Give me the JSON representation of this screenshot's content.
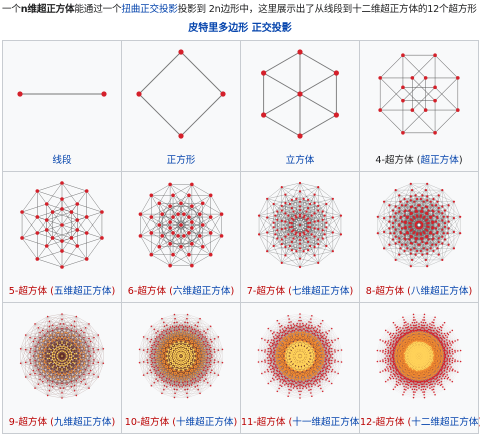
{
  "intro": {
    "t1": "一个",
    "t2": "n维超正方体",
    "t3": "能通过一个",
    "t4": "扭曲正交投影",
    "t5": "投影到 2n边形中，这里展示出了从线段到十二维超正方体的12个超方形"
  },
  "caption": {
    "c1": "皮特里多边形",
    "c2": " 正交投影"
  },
  "colors": {
    "link": "#0645ad",
    "redlink": "#ba0000",
    "vertex": "#d4202a",
    "edge": "#555555"
  },
  "cells": [
    {
      "name": "线段",
      "n": 1,
      "parts": [
        {
          "text": "线段",
          "cls": "n"
        }
      ]
    },
    {
      "name": "正方形",
      "n": 2,
      "parts": [
        {
          "text": "正方形",
          "cls": "n"
        }
      ]
    },
    {
      "name": "立方体",
      "n": 3,
      "parts": [
        {
          "text": "立方体",
          "cls": "n"
        }
      ]
    },
    {
      "name": "4-超方体",
      "n": 4,
      "parts": [
        {
          "text": "4-超方体 (",
          "cls": "p"
        },
        {
          "text": "超正方体",
          "cls": "n"
        },
        {
          "text": ")",
          "cls": "p"
        }
      ]
    },
    {
      "name": "5-超方体",
      "n": 5,
      "parts": [
        {
          "text": "5-超方体 (",
          "cls": "t"
        },
        {
          "text": "五维超正方体",
          "cls": "n"
        },
        {
          "text": ")",
          "cls": "t"
        }
      ]
    },
    {
      "name": "6-超方体",
      "n": 6,
      "parts": [
        {
          "text": "6-超方体 (",
          "cls": "t"
        },
        {
          "text": "六维超正方体",
          "cls": "n"
        },
        {
          "text": ")",
          "cls": "t"
        }
      ]
    },
    {
      "name": "7-超方体",
      "n": 7,
      "parts": [
        {
          "text": "7-超方体 (",
          "cls": "t"
        },
        {
          "text": "七维超正方体",
          "cls": "n"
        },
        {
          "text": ")",
          "cls": "t"
        }
      ]
    },
    {
      "name": "8-超方体",
      "n": 8,
      "parts": [
        {
          "text": "8-超方体 (",
          "cls": "t"
        },
        {
          "text": "八维超正方体",
          "cls": "n"
        },
        {
          "text": ")",
          "cls": "t"
        }
      ]
    },
    {
      "name": "9-超方体",
      "n": 9,
      "parts": [
        {
          "text": "9-超方体 (",
          "cls": "t"
        },
        {
          "text": "九维超正方体",
          "cls": "n"
        },
        {
          "text": ")",
          "cls": "t"
        }
      ]
    },
    {
      "name": "10-超方体",
      "n": 10,
      "parts": [
        {
          "text": "10-超方体 (",
          "cls": "t"
        },
        {
          "text": "十维超正方体",
          "cls": "n"
        },
        {
          "text": ")",
          "cls": "t"
        }
      ]
    },
    {
      "name": "11-超方体",
      "n": 11,
      "parts": [
        {
          "text": "11-超方体 (",
          "cls": "t"
        },
        {
          "text": "十一维超正方体",
          "cls": "n"
        },
        {
          "text": ")",
          "cls": "t"
        }
      ]
    },
    {
      "name": "12-超方体",
      "n": 12,
      "parts": [
        {
          "text": "12-超方体 (",
          "cls": "t"
        },
        {
          "text": "十二维超正方体",
          "cls": "n"
        },
        {
          "text": ")",
          "cls": "t"
        }
      ]
    }
  ]
}
